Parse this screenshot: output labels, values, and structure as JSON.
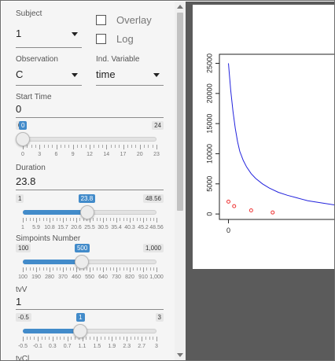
{
  "inputs": {
    "subject": {
      "label": "Subject",
      "value": "1"
    },
    "overlay": {
      "label": "Overlay",
      "checked": false
    },
    "log": {
      "label": "Log",
      "checked": false
    },
    "observation": {
      "label": "Observation",
      "value": "C"
    },
    "ind_variable": {
      "label": "Ind. Variable",
      "value": "time"
    },
    "start_time": {
      "label": "Start Time",
      "value": "0"
    },
    "duration": {
      "label": "Duration",
      "value": "23.8"
    },
    "simpoints": {
      "label": "Simpoints Number"
    },
    "tvv": {
      "label": "tvV",
      "value": "1"
    },
    "tvcl": {
      "label": "tvCl"
    }
  },
  "sliders": {
    "start_time": {
      "min": "0",
      "max": "24",
      "value": "0",
      "fraction": 0,
      "ticks": [
        "0",
        "3",
        "6",
        "9",
        "12",
        "14",
        "17",
        "20",
        "23"
      ]
    },
    "duration": {
      "min": "1",
      "max": "48.56",
      "value": "23.8",
      "fraction": 0.48,
      "ticks": [
        "1",
        "5.9",
        "10.8",
        "15.7",
        "20.6",
        "25.5",
        "30.5",
        "35.4",
        "40.3",
        "45.2",
        "48.56"
      ]
    },
    "simpoints": {
      "min": "100",
      "max": "1,000",
      "value": "500",
      "fraction": 0.444,
      "ticks": [
        "100",
        "190",
        "280",
        "370",
        "460",
        "550",
        "640",
        "730",
        "820",
        "910",
        "1,000"
      ]
    },
    "tvv": {
      "min": "-0.5",
      "max": "3",
      "value": "1",
      "fraction": 0.43,
      "ticks": [
        "-0.5",
        "-0.1",
        "0.3",
        "0.7",
        "1.1",
        "1.5",
        "1.9",
        "2.3",
        "2.7",
        "3"
      ]
    }
  },
  "chart_data": {
    "type": "scatter",
    "title": "",
    "xlabel": "",
    "ylabel": "",
    "xlim": [
      -0.4,
      4.7
    ],
    "ylim": [
      -900,
      26500
    ],
    "x_ticks": [
      "0"
    ],
    "y_ticks": [
      "0",
      "5000",
      "10000",
      "15000",
      "20000",
      "25000"
    ],
    "series": [
      {
        "kind": "line",
        "color": "#2222dd",
        "x": [
          0,
          0.1,
          0.2,
          0.3,
          0.4,
          0.5,
          0.65,
          0.8,
          1.0,
          1.2,
          1.5,
          1.8,
          2.2,
          2.6,
          3.0,
          3.5,
          4.0,
          4.7
        ],
        "y": [
          25000,
          20500,
          17000,
          14200,
          12000,
          10400,
          8900,
          7800,
          6700,
          5900,
          5000,
          4300,
          3600,
          3100,
          2700,
          2200,
          1900,
          1500
        ]
      },
      {
        "kind": "points",
        "color": "#ee3333",
        "x": [
          0,
          0.25,
          1.0,
          1.95
        ],
        "y": [
          2050,
          1300,
          600,
          250
        ]
      }
    ]
  },
  "colors": {
    "accent": "#428bca",
    "line": "#2222dd",
    "points": "#ee3333"
  }
}
